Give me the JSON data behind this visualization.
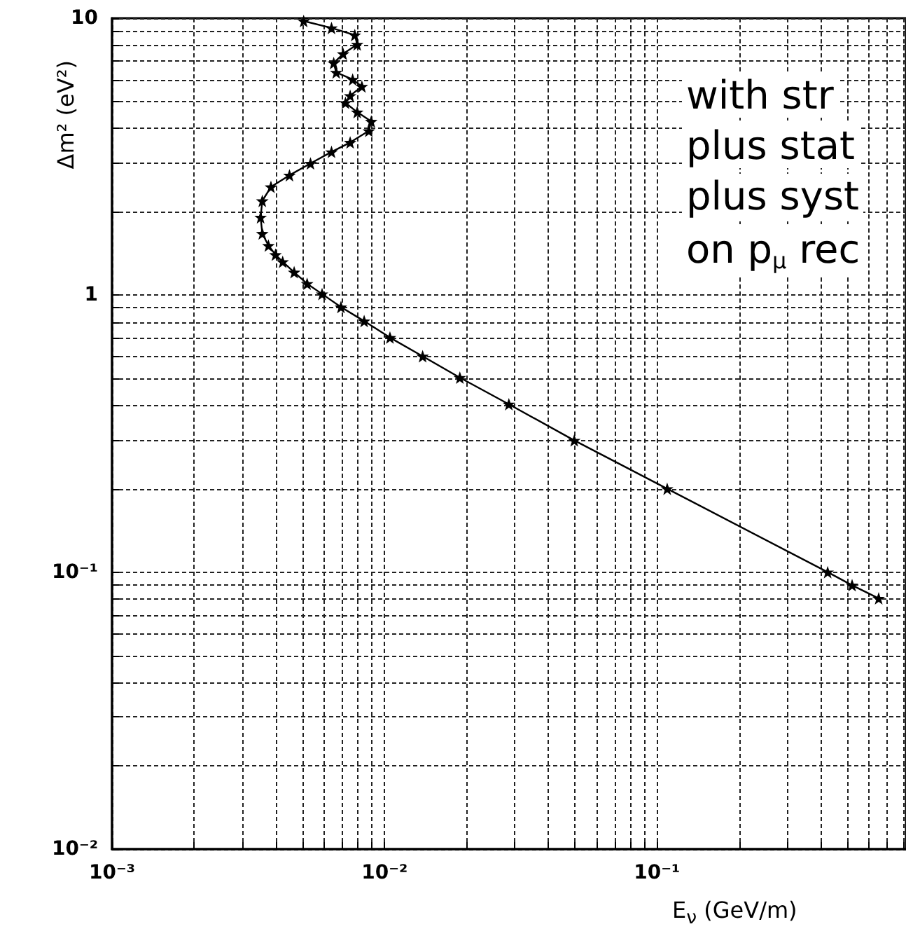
{
  "chart_data": {
    "type": "line",
    "xlabel": "E$_{ν}$ (GeV/m)",
    "ylabel": "Δm² (eV²)",
    "log": "xy",
    "grid": true,
    "marker": "star",
    "line_style": "solid",
    "xlim": [
      0.001,
      0.82
    ],
    "ylim": [
      0.01,
      10
    ],
    "xticks": [
      {
        "value": 0.001,
        "label": "10⁻³"
      },
      {
        "value": 0.002,
        "label": null
      },
      {
        "value": 0.003,
        "label": null
      },
      {
        "value": 0.004,
        "label": null
      },
      {
        "value": 0.005,
        "label": null
      },
      {
        "value": 0.006,
        "label": null
      },
      {
        "value": 0.007,
        "label": null
      },
      {
        "value": 0.008,
        "label": null
      },
      {
        "value": 0.009,
        "label": null
      },
      {
        "value": 0.01,
        "label": "10⁻²"
      },
      {
        "value": 0.02,
        "label": null
      },
      {
        "value": 0.03,
        "label": null
      },
      {
        "value": 0.04,
        "label": null
      },
      {
        "value": 0.05,
        "label": null
      },
      {
        "value": 0.06,
        "label": null
      },
      {
        "value": 0.07,
        "label": null
      },
      {
        "value": 0.08,
        "label": null
      },
      {
        "value": 0.09,
        "label": null
      },
      {
        "value": 0.1,
        "label": "10⁻¹"
      },
      {
        "value": 0.2,
        "label": null
      },
      {
        "value": 0.3,
        "label": null
      },
      {
        "value": 0.4,
        "label": null
      },
      {
        "value": 0.5,
        "label": null
      },
      {
        "value": 0.6,
        "label": null
      },
      {
        "value": 0.7,
        "label": null
      },
      {
        "value": 0.8,
        "label": null
      }
    ],
    "yticks": [
      {
        "value": 0.01,
        "label": "10⁻²"
      },
      {
        "value": 0.02,
        "label": null
      },
      {
        "value": 0.03,
        "label": null
      },
      {
        "value": 0.04,
        "label": null
      },
      {
        "value": 0.05,
        "label": null
      },
      {
        "value": 0.06,
        "label": null
      },
      {
        "value": 0.07,
        "label": null
      },
      {
        "value": 0.08,
        "label": null
      },
      {
        "value": 0.09,
        "label": null
      },
      {
        "value": 0.1,
        "label": "10⁻¹"
      },
      {
        "value": 0.2,
        "label": null
      },
      {
        "value": 0.3,
        "label": null
      },
      {
        "value": 0.4,
        "label": null
      },
      {
        "value": 0.5,
        "label": null
      },
      {
        "value": 0.6,
        "label": null
      },
      {
        "value": 0.7,
        "label": null
      },
      {
        "value": 0.8,
        "label": null
      },
      {
        "value": 0.9,
        "label": null
      },
      1,
      {
        "value": 2,
        "label": null
      },
      {
        "value": 3,
        "label": null
      },
      {
        "value": 4,
        "label": null
      },
      {
        "value": 5,
        "label": null
      },
      {
        "value": 6,
        "label": null
      },
      {
        "value": 7,
        "label": null
      },
      {
        "value": 8,
        "label": null
      },
      {
        "value": 9,
        "label": null
      },
      10
    ],
    "series": [
      {
        "color": "#000000",
        "x": [
          0.00505,
          0.00639,
          0.00778,
          0.00794,
          0.00705,
          0.00651,
          0.00665,
          0.00764,
          0.00826,
          0.00748,
          0.00719,
          0.00794,
          0.00894,
          0.00876,
          0.00748,
          0.00639,
          0.00535,
          0.00448,
          0.00383,
          0.00356,
          0.00351,
          0.00356,
          0.00375,
          0.00398,
          0.00423,
          0.00466,
          0.0052,
          0.0059,
          0.00692,
          0.00842,
          0.01047,
          0.0138,
          0.0189,
          0.0286,
          0.0497,
          0.109,
          0.423,
          0.52,
          0.651
        ],
        "values": [
          9.77,
          9.22,
          8.69,
          8.04,
          7.44,
          6.89,
          6.37,
          6.01,
          5.67,
          5.25,
          4.95,
          4.58,
          4.24,
          3.92,
          3.56,
          3.29,
          2.99,
          2.71,
          2.46,
          2.19,
          1.91,
          1.67,
          1.51,
          1.4,
          1.32,
          1.21,
          1.1,
          1.01,
          0.906,
          0.806,
          0.703,
          0.602,
          0.504,
          0.404,
          0.299,
          0.2,
          0.1,
          0.0897,
          0.0804
        ]
      }
    ],
    "annotations": [
      "with str",
      "plus stat",
      "plus syst",
      "on p$_{μ}$ rec"
    ]
  }
}
